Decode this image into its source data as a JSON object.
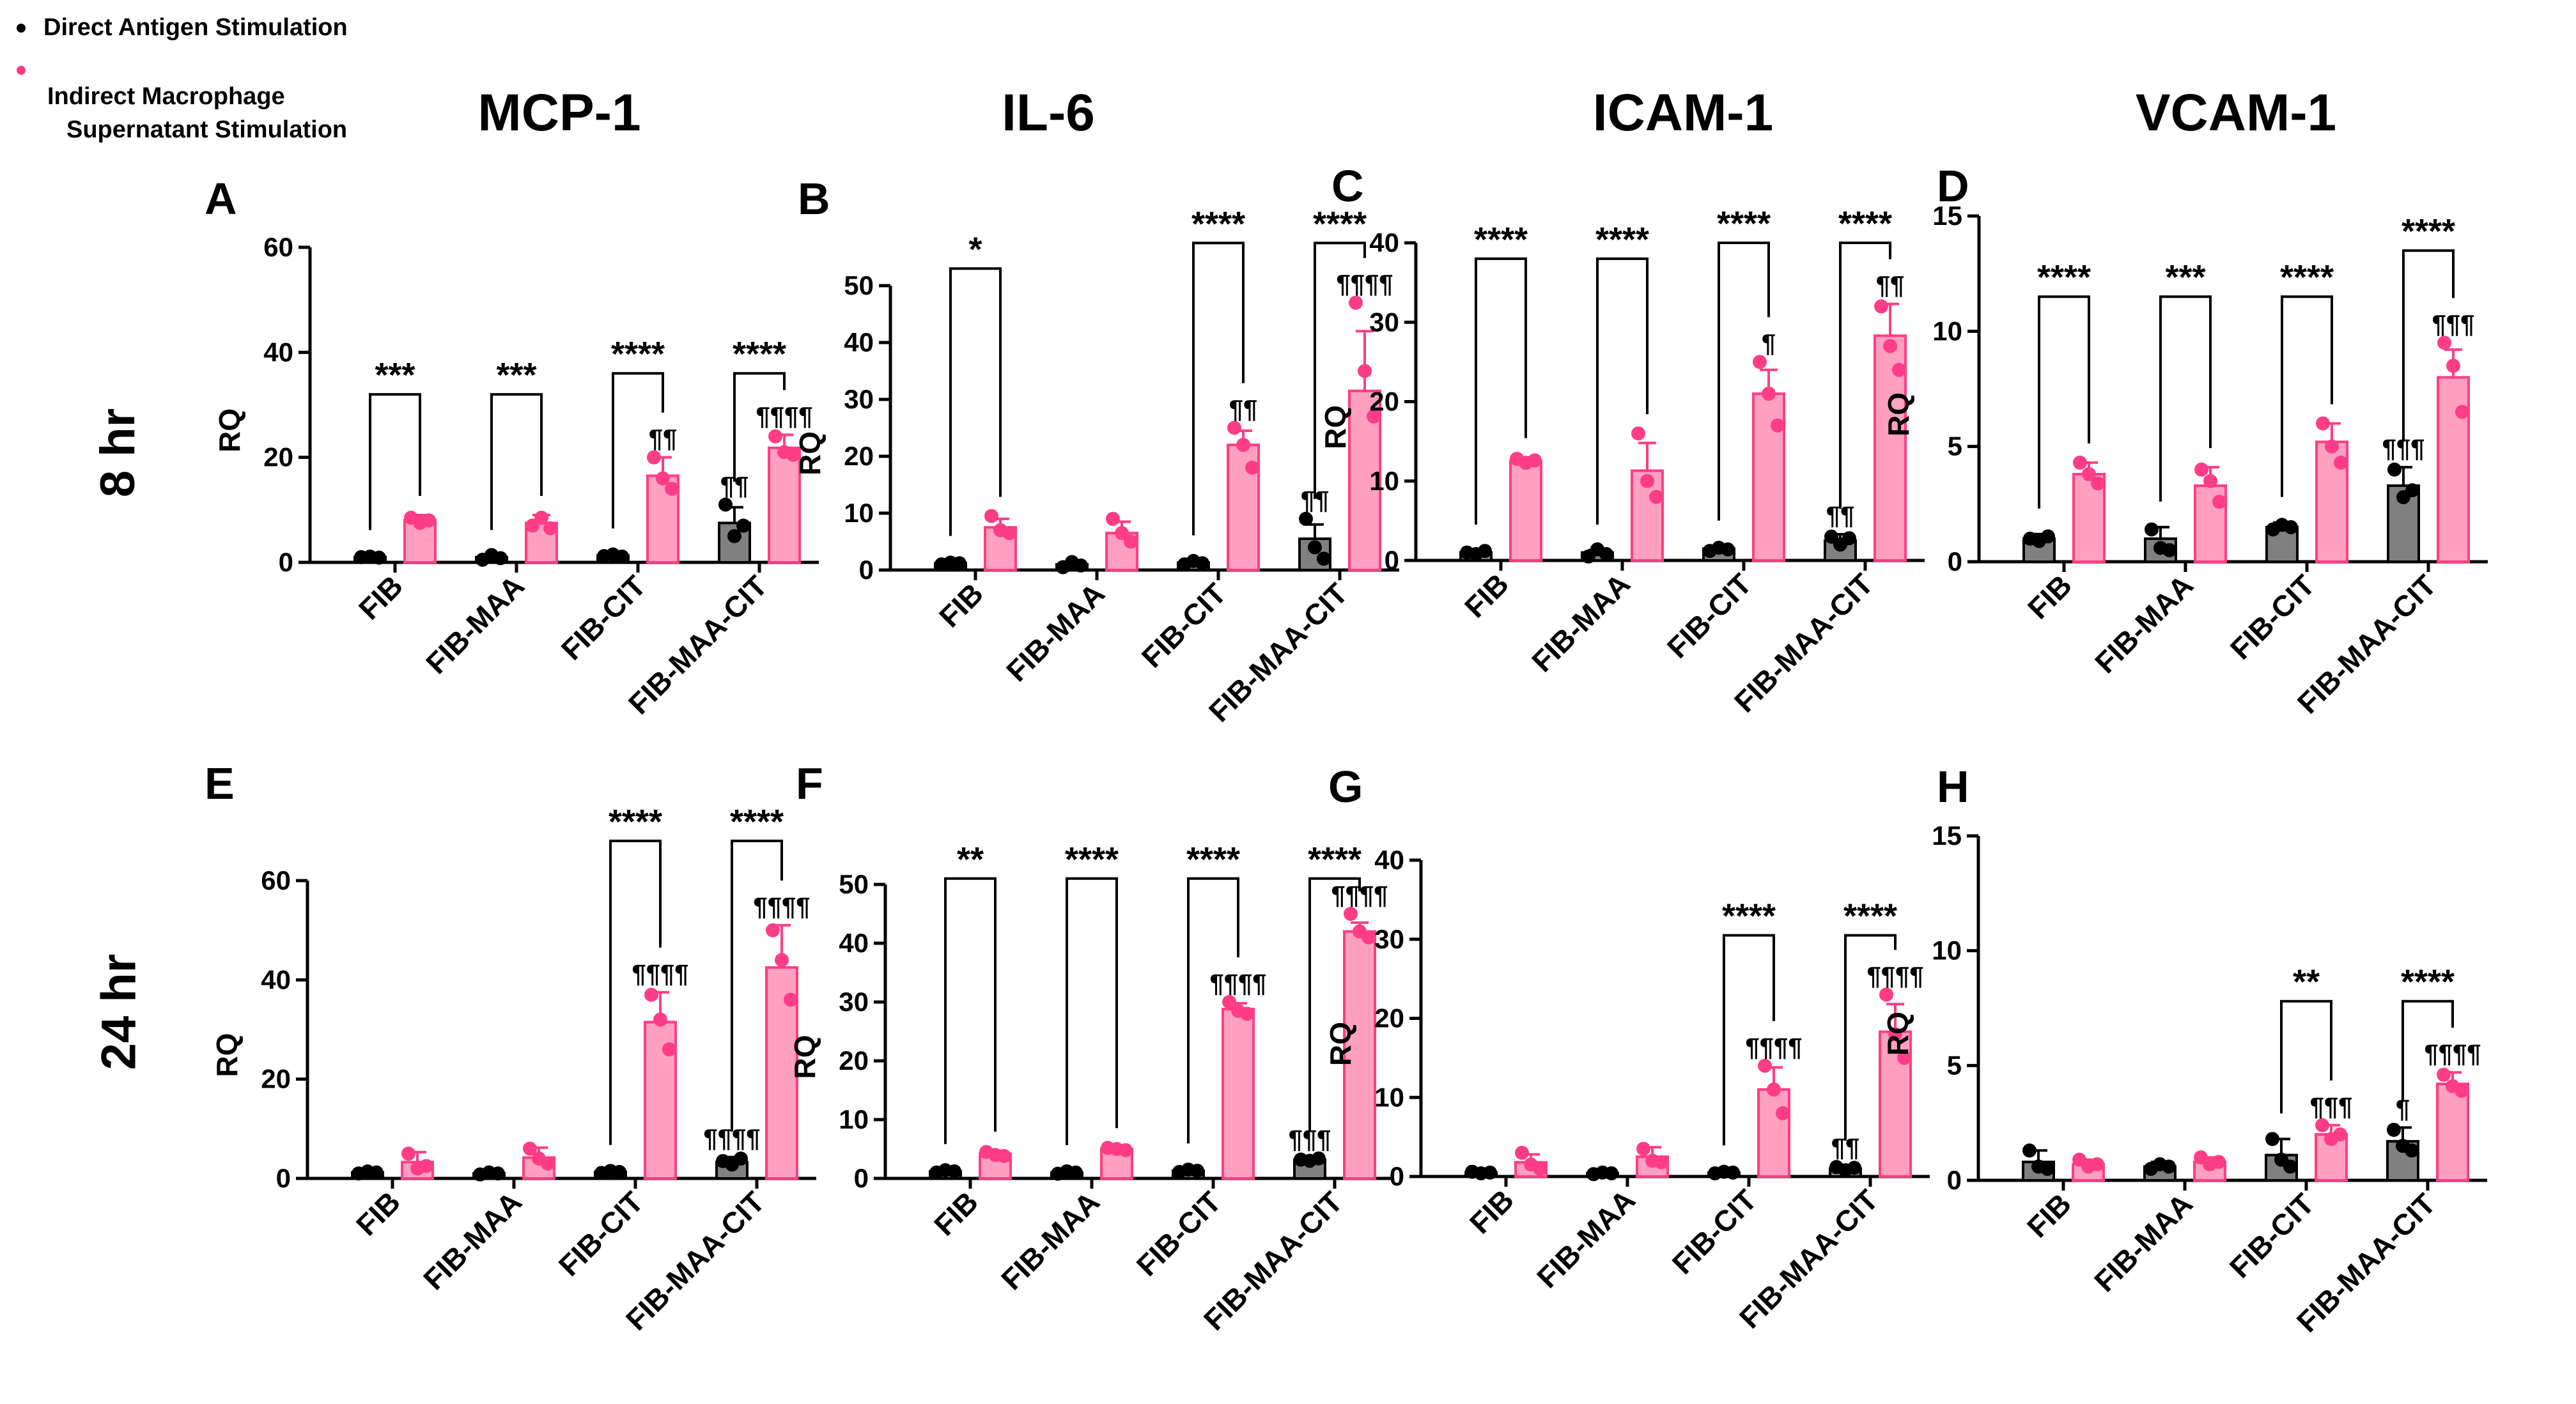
{
  "legend": [
    {
      "label": "Direct Antigen Stimulation",
      "color": "#000000"
    },
    {
      "label": "Indirect Macrophage Supernatant Stimulation",
      "line1": "Indirect Macrophage",
      "line2": "Supernatant Stimulation",
      "color": "#ff3d86"
    }
  ],
  "columns": [
    "MCP-1",
    "IL-6",
    "ICAM-1",
    "VCAM-1"
  ],
  "rows": [
    "8 hr",
    "24 hr"
  ],
  "colors": {
    "direct_bar": "#808080",
    "direct_edge": "#000000",
    "indirect_bar": "#ffa0c0",
    "indirect_edge": "#ff3d86"
  },
  "chart_data": [
    {
      "panel": "A",
      "type": "bar",
      "gene": "MCP-1",
      "time": "8 hr",
      "ylabel": "RQ",
      "ylim": [
        0,
        60
      ],
      "yticks": [
        0,
        20,
        40,
        60
      ],
      "categories": [
        "FIB",
        "FIB-MAA",
        "FIB-CIT",
        "FIB-MAA-CIT"
      ],
      "series": [
        {
          "name": "Direct Antigen Stimulation",
          "values": [
            1,
            1,
            1.3,
            7.5
          ],
          "errors": [
            0.3,
            0.3,
            0.3,
            3
          ],
          "points": [
            [
              1,
              1.1,
              0.9
            ],
            [
              0.5,
              1.4,
              0.8
            ],
            [
              1.2,
              1.5,
              1.1
            ],
            [
              11,
              5,
              7
            ]
          ],
          "marks": [
            "",
            "",
            "",
            "¶¶"
          ]
        },
        {
          "name": "Indirect Macrophage Supernatant Stimulation",
          "values": [
            8,
            7.5,
            16.5,
            21.8
          ],
          "errors": [
            1,
            1.5,
            3.5,
            2.5
          ],
          "points": [
            [
              8.5,
              7.5,
              8
            ],
            [
              7,
              8.5,
              6.5
            ],
            [
              20,
              16,
              14
            ],
            [
              24,
              21,
              20.5
            ]
          ],
          "marks": [
            "",
            "",
            "¶¶",
            "¶¶¶¶"
          ]
        }
      ],
      "brackets": [
        {
          "index": 0,
          "label": "***",
          "y": 32
        },
        {
          "index": 1,
          "label": "***",
          "y": 32
        },
        {
          "index": 2,
          "label": "****",
          "y": 36
        },
        {
          "index": 3,
          "label": "****",
          "y": 36
        }
      ]
    },
    {
      "panel": "B",
      "type": "bar",
      "gene": "IL-6",
      "time": "8 hr",
      "ylabel": "RQ",
      "ylim": [
        0,
        50
      ],
      "yticks": [
        0,
        10,
        20,
        30,
        40,
        50
      ],
      "categories": [
        "FIB",
        "FIB-MAA",
        "FIB-CIT",
        "FIB-MAA-CIT"
      ],
      "series": [
        {
          "name": "Direct Antigen Stimulation",
          "values": [
            1.2,
            1,
            1.3,
            5.5
          ],
          "errors": [
            0.3,
            0.3,
            0.3,
            2.5
          ],
          "points": [
            [
              1,
              1.3,
              1.2
            ],
            [
              0.5,
              1.4,
              0.8
            ],
            [
              1,
              1.6,
              1.2
            ],
            [
              9,
              4,
              2
            ]
          ],
          "marks": [
            "",
            "",
            "",
            "¶¶"
          ]
        },
        {
          "name": "Indirect Macrophage Supernatant Stimulation",
          "values": [
            7.5,
            6.5,
            22,
            31.5
          ],
          "errors": [
            1.5,
            2,
            2.5,
            10.5
          ],
          "points": [
            [
              9.5,
              7,
              6.5
            ],
            [
              9,
              6.5,
              5
            ],
            [
              25,
              22,
              18
            ],
            [
              47,
              35,
              27
            ]
          ],
          "marks": [
            "",
            "",
            "¶¶",
            "¶¶¶¶"
          ]
        }
      ],
      "brackets": [
        {
          "index": 0,
          "label": "*",
          "y": 53
        },
        {
          "index": 2,
          "label": "****",
          "y": 57.5
        },
        {
          "index": 3,
          "label": "****",
          "y": 57.5
        }
      ]
    },
    {
      "panel": "C",
      "type": "bar",
      "gene": "ICAM-1",
      "time": "8 hr",
      "ylabel": "RQ",
      "ylim": [
        0,
        40
      ],
      "yticks": [
        0,
        10,
        20,
        30,
        40
      ],
      "categories": [
        "FIB",
        "FIB-MAA",
        "FIB-CIT",
        "FIB-MAA-CIT"
      ],
      "series": [
        {
          "name": "Direct Antigen Stimulation",
          "values": [
            1,
            1,
            1.5,
            2.5
          ],
          "errors": [
            0.3,
            0.3,
            0.3,
            0.8
          ],
          "points": [
            [
              1,
              0.8,
              1.2
            ],
            [
              0.5,
              1.4,
              0.8
            ],
            [
              1.2,
              1.6,
              1.4
            ],
            [
              3,
              2,
              2.8
            ]
          ],
          "marks": [
            "",
            "",
            "",
            "¶¶"
          ]
        },
        {
          "name": "Indirect Macrophage Supernatant Stimulation",
          "values": [
            12.5,
            11.3,
            21,
            28.3
          ],
          "errors": [
            0.5,
            3.5,
            3,
            4
          ],
          "points": [
            [
              12.8,
              12.3,
              12.6
            ],
            [
              16,
              10,
              8
            ],
            [
              25,
              21,
              17
            ],
            [
              32,
              27,
              24
            ]
          ],
          "marks": [
            "",
            "",
            "¶",
            "¶¶"
          ]
        }
      ],
      "brackets": [
        {
          "index": 0,
          "label": "****",
          "y": 38
        },
        {
          "index": 1,
          "label": "****",
          "y": 38
        },
        {
          "index": 2,
          "label": "****",
          "y": 40
        },
        {
          "index": 3,
          "label": "****",
          "y": 40
        }
      ]
    },
    {
      "panel": "D",
      "type": "bar",
      "gene": "VCAM-1",
      "time": "8 hr",
      "ylabel": "RQ",
      "ylim": [
        0,
        15
      ],
      "yticks": [
        0,
        5,
        10,
        15
      ],
      "categories": [
        "FIB",
        "FIB-MAA",
        "FIB-CIT",
        "FIB-MAA-CIT"
      ],
      "series": [
        {
          "name": "Direct Antigen Stimulation",
          "values": [
            1,
            1,
            1.5,
            3.3
          ],
          "errors": [
            0.2,
            0.5,
            0.2,
            0.8
          ],
          "points": [
            [
              1,
              0.9,
              1.1
            ],
            [
              1.4,
              0.6,
              0.5
            ],
            [
              1.4,
              1.6,
              1.5
            ],
            [
              4,
              2.8,
              3.1
            ]
          ],
          "marks": [
            "",
            "",
            "",
            "¶¶¶"
          ]
        },
        {
          "name": "Indirect Macrophage Supernatant Stimulation",
          "values": [
            3.8,
            3.3,
            5.2,
            8
          ],
          "errors": [
            0.5,
            0.8,
            0.8,
            1.2
          ],
          "points": [
            [
              4.3,
              3.8,
              3.4
            ],
            [
              4,
              3.5,
              2.6
            ],
            [
              6,
              5,
              4.3
            ],
            [
              9.5,
              8.5,
              6.5
            ]
          ],
          "marks": [
            "",
            "",
            "",
            "¶¶¶"
          ]
        }
      ],
      "brackets": [
        {
          "index": 0,
          "label": "****",
          "y": 11.5
        },
        {
          "index": 1,
          "label": "***",
          "y": 11.5
        },
        {
          "index": 2,
          "label": "****",
          "y": 11.5
        },
        {
          "index": 3,
          "label": "****",
          "y": 13.5
        }
      ]
    },
    {
      "panel": "E",
      "type": "bar",
      "gene": "MCP-1",
      "time": "24 hr",
      "ylabel": "RQ",
      "ylim": [
        0,
        60
      ],
      "yticks": [
        0,
        20,
        40,
        60
      ],
      "categories": [
        "FIB",
        "FIB-MAA",
        "FIB-CIT",
        "FIB-MAA-CIT"
      ],
      "series": [
        {
          "name": "Direct Antigen Stimulation",
          "values": [
            1.2,
            1,
            1.3,
            3.3
          ],
          "errors": [
            0.3,
            0.3,
            0.3,
            1
          ],
          "points": [
            [
              1,
              1.4,
              1.2
            ],
            [
              0.8,
              1.2,
              1
            ],
            [
              1.1,
              1.5,
              1.3
            ],
            [
              3.5,
              2.8,
              4
            ]
          ],
          "marks": [
            "",
            "",
            "",
            "¶¶¶¶"
          ]
        },
        {
          "name": "Indirect Macrophage Supernatant Stimulation",
          "values": [
            3.3,
            4.2,
            31.5,
            42.5
          ],
          "errors": [
            2,
            2,
            6,
            8.5
          ],
          "points": [
            [
              5,
              2,
              2.5
            ],
            [
              6,
              4,
              3
            ],
            [
              37,
              32,
              26
            ],
            [
              50,
              44,
              36
            ]
          ],
          "marks": [
            "",
            "",
            "¶¶¶¶",
            "¶¶¶¶"
          ]
        }
      ],
      "brackets": [
        {
          "index": 2,
          "label": "****",
          "y": 68
        },
        {
          "index": 3,
          "label": "****",
          "y": 68
        }
      ]
    },
    {
      "panel": "F",
      "type": "bar",
      "gene": "IL-6",
      "time": "24 hr",
      "ylabel": "RQ",
      "ylim": [
        0,
        50
      ],
      "yticks": [
        0,
        10,
        20,
        30,
        40,
        50
      ],
      "categories": [
        "FIB",
        "FIB-MAA",
        "FIB-CIT",
        "FIB-MAA-CIT"
      ],
      "series": [
        {
          "name": "Direct Antigen Stimulation",
          "values": [
            1.2,
            1,
            1.3,
            3.2
          ],
          "errors": [
            0.3,
            0.3,
            0.3,
            0.3
          ],
          "points": [
            [
              1,
              1.4,
              1.2
            ],
            [
              0.8,
              1.2,
              1
            ],
            [
              1.1,
              1.5,
              1.3
            ],
            [
              3.2,
              3,
              3.4
            ]
          ],
          "marks": [
            "",
            "",
            "",
            "¶¶¶"
          ]
        },
        {
          "name": "Indirect Macrophage Supernatant Stimulation",
          "values": [
            4.2,
            5,
            28.8,
            42
          ],
          "errors": [
            0.5,
            0.3,
            1,
            1.5
          ],
          "points": [
            [
              4.5,
              4,
              3.8
            ],
            [
              5.2,
              5,
              4.8
            ],
            [
              30,
              28.5,
              28
            ],
            [
              45,
              42,
              41
            ]
          ],
          "marks": [
            "",
            "",
            "¶¶¶¶",
            "¶¶¶¶"
          ]
        }
      ],
      "brackets": [
        {
          "index": 0,
          "label": "**",
          "y": 51
        },
        {
          "index": 1,
          "label": "****",
          "y": 51
        },
        {
          "index": 2,
          "label": "****",
          "y": 51
        },
        {
          "index": 3,
          "label": "****",
          "y": 51
        }
      ]
    },
    {
      "panel": "G",
      "type": "bar",
      "gene": "ICAM-1",
      "time": "24 hr",
      "ylabel": "RQ",
      "ylim": [
        0,
        40
      ],
      "yticks": [
        0,
        10,
        20,
        30,
        40
      ],
      "categories": [
        "FIB",
        "FIB-MAA",
        "FIB-CIT",
        "FIB-MAA-CIT"
      ],
      "series": [
        {
          "name": "Direct Antigen Stimulation",
          "values": [
            0.5,
            0.4,
            0.5,
            1
          ],
          "errors": [
            0.2,
            0.2,
            0.2,
            0.3
          ],
          "points": [
            [
              0.6,
              0.4,
              0.5
            ],
            [
              0.3,
              0.5,
              0.4
            ],
            [
              0.4,
              0.6,
              0.5
            ],
            [
              1.2,
              0.8,
              1.1
            ]
          ],
          "marks": [
            "",
            "",
            "",
            "¶¶"
          ]
        },
        {
          "name": "Indirect Macrophage Supernatant Stimulation",
          "values": [
            1.8,
            2.5,
            11,
            18.3
          ],
          "errors": [
            1,
            1.2,
            2.8,
            3.5
          ],
          "points": [
            [
              3,
              1.5,
              1
            ],
            [
              3.5,
              2,
              1.8
            ],
            [
              14,
              11,
              8
            ],
            [
              23,
              18,
              15
            ]
          ],
          "marks": [
            "",
            "",
            "¶¶¶¶",
            "¶¶¶¶"
          ]
        }
      ],
      "brackets": [
        {
          "index": 2,
          "label": "****",
          "y": 30.5
        },
        {
          "index": 3,
          "label": "****",
          "y": 30.5
        }
      ]
    },
    {
      "panel": "H",
      "type": "bar",
      "gene": "VCAM-1",
      "time": "24 hr",
      "ylabel": "RQ",
      "ylim": [
        0,
        15
      ],
      "yticks": [
        0,
        5,
        10,
        15
      ],
      "categories": [
        "FIB",
        "FIB-MAA",
        "FIB-CIT",
        "FIB-MAA-CIT"
      ],
      "series": [
        {
          "name": "Direct Antigen Stimulation",
          "values": [
            0.8,
            0.6,
            1.1,
            1.7
          ],
          "errors": [
            0.5,
            0.2,
            0.7,
            0.6
          ],
          "points": [
            [
              1.3,
              0.6,
              0.5
            ],
            [
              0.5,
              0.7,
              0.6
            ],
            [
              1.8,
              0.9,
              0.6
            ],
            [
              2.2,
              1.5,
              1.3
            ]
          ],
          "marks": [
            "",
            "",
            "",
            "¶"
          ]
        },
        {
          "name": "Indirect Macrophage Supernatant Stimulation",
          "values": [
            0.7,
            0.8,
            2,
            4.2
          ],
          "errors": [
            0.2,
            0.2,
            0.4,
            0.5
          ],
          "points": [
            [
              0.9,
              0.6,
              0.7
            ],
            [
              1,
              0.7,
              0.8
            ],
            [
              2.4,
              1.8,
              2
            ],
            [
              4.6,
              4.1,
              3.9
            ]
          ],
          "marks": [
            "",
            "",
            "¶¶¶",
            "¶¶¶¶"
          ]
        }
      ],
      "brackets": [
        {
          "index": 2,
          "label": "**",
          "y": 7.8
        },
        {
          "index": 3,
          "label": "****",
          "y": 7.8
        }
      ]
    }
  ]
}
